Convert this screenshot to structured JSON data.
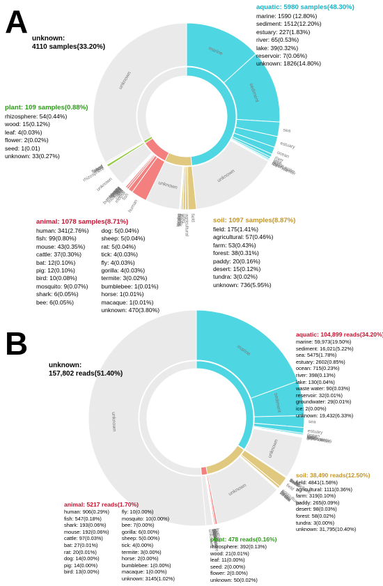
{
  "colors": {
    "aquatic": "#4ed6e2",
    "soil": "#e0c87e",
    "animal": "#f47f7f",
    "plant": "#98cc48",
    "unknown": "#eaeaea",
    "aquatic_text": "#14b2c6",
    "soil_text": "#c49526",
    "animal_text": "#c8102e",
    "plant_text": "#2e9a1a"
  },
  "panels": [
    {
      "letter": "A",
      "top_unknown": {
        "title": "unknown:",
        "value": "4110 samples(33.20%)"
      },
      "groups": {
        "aquatic": {
          "header": "aquatic:  5980 samples(48.30%)",
          "lines": [
            "marine: 1590 (12.80%)",
            "sediment: 1512(12.20%)",
            "estuary: 227(1.83%)",
            "river: 65(0.53%)",
            "lake: 39(0.32%)",
            "reservoir: 7(0.06%)",
            "unknown: 1826(14.80%)"
          ]
        },
        "plant": {
          "header": "plant: 109 samples(0.88%)",
          "lines": [
            "rhizosphere: 54(0.44%)",
            "wood: 15(0.12%)",
            "leaf: 4(0.03%)",
            "flower: 2(0.02%)",
            "seed: 1(0.01)",
            "unknown: 33(0.27%)"
          ]
        },
        "animal": {
          "header": "animal: 1078 samples(8.71%)",
          "col1": [
            "human: 341(2.76%)",
            "fish: 99(0.80%)",
            "mouse: 43(0.35%)",
            "cattle: 37(0.30%)",
            "bat: 12(0.10%)",
            "pig: 12(0.10%)",
            "bird: 10(0.08%)",
            "mosquito: 9(0.07%)",
            "shark: 6(0.05%)",
            "bee: 6(0.05%)"
          ],
          "col2": [
            "dog: 5(0.04%)",
            "sheep: 5(0.04%)",
            "rat: 5(0.04%)",
            "tick: 4(0.03%)",
            "fly: 4(0.03%)",
            "gorilla: 4(0.03%)",
            "termite: 3(0.02%)",
            "bumblebee: 1(0.01%)",
            "horse: 1(0.01%)",
            "macaque: 1(0.01%)",
            "unknown: 470(3.80%)"
          ]
        },
        "soil": {
          "header": "soil: 1097 samples(8.87%)",
          "lines": [
            "field: 175(1.41%)",
            "agricultural: 57(0.46%)",
            "farm: 53(0.43%)",
            "forest: 38(0.31%)",
            "paddy: 20(0.16%)",
            "desert: 15(0.12%)",
            "tundra: 3(0.02%)",
            "unknown: 736(5.95%)"
          ]
        }
      },
      "ring_labels": {
        "inner": [
          "unknown",
          "aquatic",
          "soil",
          "animal"
        ],
        "outer": [
          "unknown",
          "marine",
          "sediment",
          "sea",
          "estuary",
          "unknown",
          "unknown",
          "human",
          "unknown"
        ],
        "outside": [
          "ocean",
          "river",
          "lake",
          "waste water",
          "groundwater",
          "reservoir",
          "ice",
          "field",
          "agricultural",
          "tundra",
          "unknown",
          "wood",
          "flower",
          "leaf",
          "seed",
          "rhizosphere",
          "bumblebee",
          "mosquito",
          "fish",
          "cattle",
          "bat",
          "pig",
          "gorilla",
          "mouse",
          "shark",
          "termite",
          "dog",
          "fly",
          "bee",
          "tick",
          "rat",
          "sheep"
        ]
      }
    },
    {
      "letter": "B",
      "top_unknown": {
        "title": "unknown:",
        "value": "157,802 reads(51.40%)"
      },
      "groups": {
        "aquatic": {
          "header": "aquatic: 104,899 reads(34.20%)",
          "lines": [
            "marine: 59,973(19.50%)",
            "sediment: 16,021(5.22%)",
            "sea: 5475(1.78%)",
            "estuary: 2602(0.85%)",
            "ocean: 715(0.23%)",
            "river: 398(0.13%)",
            "lake: 130(0.04%)",
            "waste water: 90(0.03%)",
            "reservoir: 32(0.01%)",
            "groundwater: 29(0.01%)",
            "ice: 2(0.00%)",
            "unknown: 19,432(6.33%)"
          ]
        },
        "soil": {
          "header": "soil: 38,490 reads(12.50%)",
          "lines": [
            "field: 4841(1.58%)",
            "agricultural: 1111(0.36%)",
            "farm: 319(0.10%)",
            "paddy: 265(0.09%)",
            "desert: 98(0.03%)",
            "forest: 58(0.02%)",
            "tundra: 3(0.00%)",
            "unknown: 31,795(10.40%)"
          ]
        },
        "animal": {
          "header": "animal: 5217 reads(1.70%)",
          "col1": [
            "human: 906(0.29%)",
            "fish: 547(0.18%)",
            "shark: 193(0.06%)",
            "mouse: 192(0.06%)",
            "cattle: 97(0.03%)",
            "bat: 27(0.01%)",
            "rat: 20(0.01%)",
            "dog: 14(0.00%)",
            "pig: 14(0.00%)",
            "bird: 13(0.00%)"
          ],
          "col2": [
            "fly: 10(0.00%)",
            "mosquito: 10(0.00%)",
            "bee: 7(0.00%)",
            "gorilla: 6(0.00%)",
            "sheep: 5(0.00%)",
            "tick: 4(0.00%)",
            "termite: 3(0.00%)",
            "horse: 2(0.00%)",
            "bumblebee: 1(0.00%)",
            "macaque: 1(0.00%)",
            "unknown: 3145(1.02%)"
          ]
        },
        "plant": {
          "header": "plant: 478 reads(0.16%)",
          "lines": [
            "rhizosphere: 392(0.13%)",
            "wood: 21(0.01%)",
            "leaf: 11(0.00%)",
            "seed: 2(0.00%)",
            "flower: 2(0.00%)",
            "unknown: 50(0.02%)"
          ]
        }
      },
      "ring_labels": {
        "inner": [
          "unknown",
          "aquatic",
          "soil"
        ],
        "outer": [
          "unknown",
          "marine",
          "sediment",
          "sea",
          "unknown",
          "field",
          "unknown"
        ],
        "outside": [
          "estuary",
          "ocean",
          "river",
          "lake",
          "waste water",
          "reservoir",
          "groundwater",
          "ice",
          "agricultural",
          "farm",
          "paddy",
          "desert",
          "forest",
          "tundra",
          "rhizosphere",
          "wood",
          "human",
          "fish",
          "shark",
          "mouse",
          "cattle",
          "bat",
          "rat",
          "dog",
          "pig",
          "bird",
          "fly",
          "mosquito",
          "bee",
          "gorilla",
          "sheep",
          "tick",
          "termite",
          "horse",
          "bumblebee",
          "macaque"
        ]
      }
    }
  ],
  "chart_data": [
    {
      "type": "pie",
      "panel": "A",
      "unit": "samples",
      "inner": [
        {
          "name": "aquatic",
          "value": 5980
        },
        {
          "name": "soil",
          "value": 1097
        },
        {
          "name": "animal",
          "value": 1078
        },
        {
          "name": "plant",
          "value": 109
        },
        {
          "name": "unknown",
          "value": 4110
        }
      ],
      "outer": {
        "aquatic": [
          [
            "marine",
            1590
          ],
          [
            "sediment",
            1512
          ],
          [
            "sea",
            300
          ],
          [
            "estuary",
            227
          ],
          [
            "ocean",
            150
          ],
          [
            "river",
            65
          ],
          [
            "lake",
            39
          ],
          [
            "waste water",
            25
          ],
          [
            "groundwater",
            20
          ],
          [
            "reservoir",
            7
          ],
          [
            "ice",
            5
          ],
          [
            "unknown",
            1826
          ]
        ],
        "soil": [
          [
            "field",
            175
          ],
          [
            "agricultural",
            57
          ],
          [
            "farm",
            53
          ],
          [
            "forest",
            38
          ],
          [
            "paddy",
            20
          ],
          [
            "desert",
            15
          ],
          [
            "tundra",
            3
          ],
          [
            "unknown",
            736
          ]
        ],
        "animal": [
          [
            "human",
            341
          ],
          [
            "fish",
            99
          ],
          [
            "mouse",
            43
          ],
          [
            "cattle",
            37
          ],
          [
            "bat",
            12
          ],
          [
            "pig",
            12
          ],
          [
            "bird",
            10
          ],
          [
            "mosquito",
            9
          ],
          [
            "shark",
            6
          ],
          [
            "bee",
            6
          ],
          [
            "dog",
            5
          ],
          [
            "sheep",
            5
          ],
          [
            "rat",
            5
          ],
          [
            "tick",
            4
          ],
          [
            "fly",
            4
          ],
          [
            "gorilla",
            4
          ],
          [
            "termite",
            3
          ],
          [
            "bumblebee",
            1
          ],
          [
            "horse",
            1
          ],
          [
            "macaque",
            1
          ],
          [
            "unknown",
            470
          ]
        ],
        "plant": [
          [
            "rhizosphere",
            54
          ],
          [
            "wood",
            15
          ],
          [
            "leaf",
            4
          ],
          [
            "flower",
            2
          ],
          [
            "seed",
            1
          ],
          [
            "unknown",
            33
          ]
        ],
        "unknown": [
          [
            "unknown",
            4110
          ]
        ]
      }
    },
    {
      "type": "pie",
      "panel": "B",
      "unit": "reads",
      "inner": [
        {
          "name": "aquatic",
          "value": 104899
        },
        {
          "name": "plant",
          "value": 478
        },
        {
          "name": "soil",
          "value": 38490
        },
        {
          "name": "animal",
          "value": 5217
        },
        {
          "name": "unknown",
          "value": 157802
        }
      ],
      "outer": {
        "aquatic": [
          [
            "marine",
            59973
          ],
          [
            "sediment",
            16021
          ],
          [
            "sea",
            5475
          ],
          [
            "estuary",
            2602
          ],
          [
            "ocean",
            715
          ],
          [
            "river",
            398
          ],
          [
            "lake",
            130
          ],
          [
            "waste water",
            90
          ],
          [
            "reservoir",
            32
          ],
          [
            "groundwater",
            29
          ],
          [
            "ice",
            2
          ],
          [
            "unknown",
            19432
          ]
        ],
        "plant": [
          [
            "rhizosphere",
            392
          ],
          [
            "wood",
            21
          ],
          [
            "leaf",
            11
          ],
          [
            "seed",
            2
          ],
          [
            "flower",
            2
          ],
          [
            "unknown",
            50
          ]
        ],
        "soil": [
          [
            "field",
            4841
          ],
          [
            "agricultural",
            1111
          ],
          [
            "farm",
            319
          ],
          [
            "paddy",
            265
          ],
          [
            "desert",
            98
          ],
          [
            "forest",
            58
          ],
          [
            "tundra",
            3
          ],
          [
            "unknown",
            31795
          ]
        ],
        "animal": [
          [
            "human",
            906
          ],
          [
            "fish",
            547
          ],
          [
            "shark",
            193
          ],
          [
            "mouse",
            192
          ],
          [
            "cattle",
            97
          ],
          [
            "bat",
            27
          ],
          [
            "rat",
            20
          ],
          [
            "dog",
            14
          ],
          [
            "pig",
            14
          ],
          [
            "bird",
            13
          ],
          [
            "fly",
            10
          ],
          [
            "mosquito",
            10
          ],
          [
            "bee",
            7
          ],
          [
            "gorilla",
            6
          ],
          [
            "sheep",
            5
          ],
          [
            "tick",
            4
          ],
          [
            "termite",
            3
          ],
          [
            "horse",
            2
          ],
          [
            "bumblebee",
            1
          ],
          [
            "macaque",
            1
          ],
          [
            "unknown",
            3145
          ]
        ],
        "unknown": [
          [
            "unknown",
            157802
          ]
        ]
      }
    }
  ]
}
